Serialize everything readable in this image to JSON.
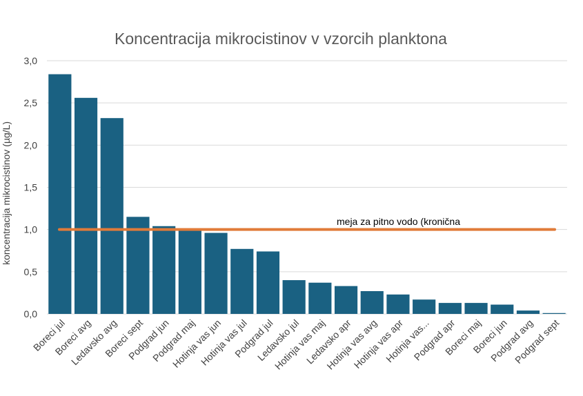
{
  "chart_data": {
    "type": "bar",
    "title": "Koncentracija mikrocistinov v vzorcih planktona",
    "ylabel": "koncentracija mikrocistinov (µg/L)",
    "xlabel": "",
    "ylim": [
      0,
      3.0
    ],
    "ytick_labels": [
      "0,0",
      "0,5",
      "1,0",
      "1,5",
      "2,0",
      "2,5",
      "3,0"
    ],
    "yticks": [
      0,
      0.5,
      1.0,
      1.5,
      2.0,
      2.5,
      3.0
    ],
    "grid": true,
    "categories": [
      "Boreci jul",
      "Boreci avg",
      "Ledavsko avg",
      "Boreci sept",
      "Podgrad jun",
      "Podgrad maj",
      "Hotinja vas jun",
      "Hotinja vas jul",
      "Podgrad jul",
      "Ledavsko jul",
      "Hotinja vas maj",
      "Ledavsko apr",
      "Hotinja vas avg",
      "Hotinja vas apr",
      "Hotinja vas...",
      "Podgrad apr",
      "Boreci maj",
      "Boreci jun",
      "Podgrad avg",
      "Podgrad sept"
    ],
    "values": [
      2.84,
      2.56,
      2.32,
      1.15,
      1.04,
      1.01,
      0.96,
      0.77,
      0.74,
      0.4,
      0.37,
      0.33,
      0.27,
      0.23,
      0.17,
      0.13,
      0.13,
      0.11,
      0.04,
      0.01
    ],
    "bar_color": "#1a6182",
    "reference_line": {
      "value": 1.0,
      "label": "meja za pitno vodo (kronična",
      "color": "#e07b39"
    }
  }
}
